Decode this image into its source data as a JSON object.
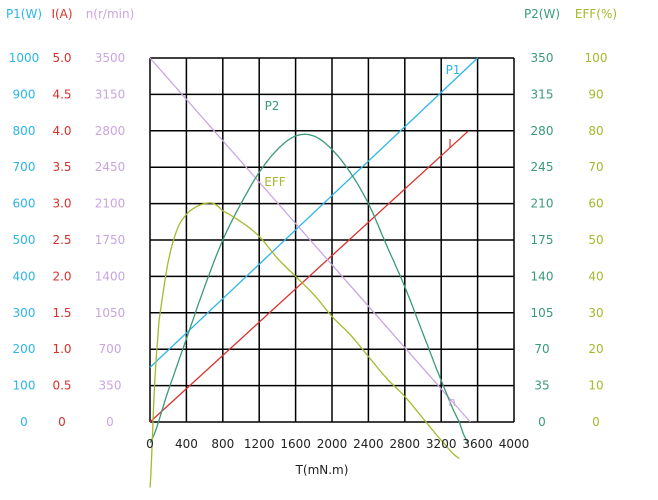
{
  "chart_data": {
    "type": "line",
    "xlabel": "T(mN.m)",
    "x_ticks": [
      "0",
      "400",
      "800",
      "1200",
      "1600",
      "2000",
      "2400",
      "2800",
      "3200",
      "3600",
      "4000"
    ],
    "axes": [
      {
        "id": "P1",
        "label": "P1(W)",
        "color": "#2bb6e8",
        "side": "left",
        "ticks": [
          "0",
          "100",
          "200",
          "300",
          "400",
          "500",
          "600",
          "700",
          "800",
          "900",
          "1000"
        ]
      },
      {
        "id": "I",
        "label": "I(A)",
        "color": "#d9312a",
        "side": "left",
        "ticks": [
          "0",
          "0.5",
          "1.0",
          "1.5",
          "2.0",
          "2.5",
          "3.0",
          "3.5",
          "4.0",
          "4.5",
          "5.0"
        ]
      },
      {
        "id": "n",
        "label": "n(r/min)",
        "color": "#c9a6e2",
        "side": "left",
        "ticks": [
          "0",
          "350",
          "700",
          "1050",
          "1400",
          "1750",
          "2100",
          "2450",
          "2800",
          "3150",
          "3500"
        ]
      },
      {
        "id": "P2",
        "label": "P2(W)",
        "color": "#3a9a78",
        "side": "right",
        "ticks": [
          "0",
          "35",
          "70",
          "105",
          "140",
          "175",
          "210",
          "245",
          "280",
          "315",
          "350"
        ]
      },
      {
        "id": "EFF",
        "label": "EFF(%)",
        "color": "#a8b82c",
        "side": "right",
        "ticks": [
          "0",
          "10",
          "20",
          "30",
          "40",
          "50",
          "60",
          "70",
          "80",
          "90",
          "100"
        ]
      }
    ],
    "series": [
      {
        "name": "P1",
        "color": "#2bb6e8",
        "x": [
          0,
          3600
        ],
        "y": [
          150,
          1000
        ]
      },
      {
        "name": "I",
        "color": "#d9312a",
        "x": [
          0,
          3500
        ],
        "y": [
          0,
          4.0
        ]
      },
      {
        "name": "n",
        "color": "#c9a6e2",
        "x": [
          0,
          3520
        ],
        "y": [
          3500,
          0
        ]
      },
      {
        "name": "P2",
        "color": "#3a9a78",
        "x": [
          0,
          200,
          400,
          600,
          800,
          1000,
          1200,
          1400,
          1600,
          1800,
          2000,
          2200,
          2400,
          2600,
          2800,
          3000,
          3200,
          3400,
          3500
        ],
        "y": [
          -20,
          30,
          80,
          130,
          175,
          210,
          240,
          262,
          275,
          275,
          262,
          240,
          210,
          170,
          130,
          85,
          40,
          0,
          -20
        ]
      },
      {
        "name": "EFF",
        "color": "#a8b82c",
        "x": [
          0,
          50,
          100,
          200,
          300,
          400,
          500,
          600,
          700,
          800,
          1000,
          1200,
          1400,
          1600,
          1800,
          2000,
          2200,
          2400,
          2600,
          2800,
          3000,
          3200,
          3400
        ],
        "y": [
          -18,
          10,
          28,
          44,
          53,
          57,
          59,
          60,
          60,
          58,
          55,
          51,
          45,
          40,
          35,
          29,
          24,
          18,
          12,
          7,
          1,
          -5,
          -10
        ]
      }
    ]
  }
}
